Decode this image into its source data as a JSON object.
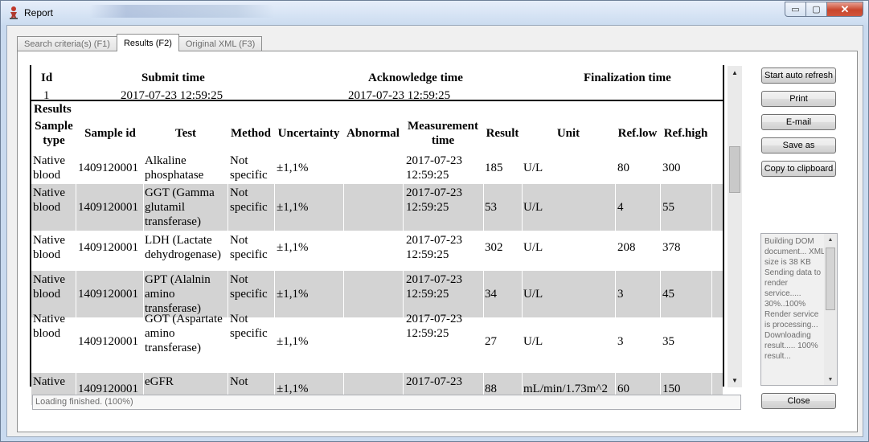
{
  "window": {
    "title": "Report",
    "controls": {
      "minimize": "▭",
      "maximize": "▢",
      "close": "✕"
    }
  },
  "tabs": [
    {
      "label": "Search criteria(s) (F1)",
      "active": false
    },
    {
      "label": "Results (F2)",
      "active": true
    },
    {
      "label": "Original XML (F3)",
      "active": false
    }
  ],
  "summary": {
    "headers": {
      "id": "Id",
      "submit": "Submit time",
      "ack": "Acknowledge time",
      "final": "Finalization time"
    },
    "values": {
      "id": "1",
      "submit": "2017-07-23 12:59:25",
      "ack": "2017-07-23 12:59:25",
      "final": ""
    }
  },
  "results": {
    "title": "Results",
    "columns": [
      "Sample type",
      "Sample id",
      "Test",
      "Method",
      "Uncertainty",
      "Abnormal",
      "Measurement time",
      "Result",
      "Unit",
      "Ref.low",
      "Ref.high"
    ],
    "rows": [
      {
        "sample_type": "Native blood",
        "sample_id": "1409120001",
        "test": "Alkaline phosphatase",
        "method": "Not specific",
        "uncertainty": "±1,1%",
        "abnormal": "",
        "time": "2017-07-23 12:59:25",
        "result": "185",
        "unit": "U/L",
        "ref_low": "80",
        "ref_high": "300"
      },
      {
        "sample_type": "Native blood",
        "sample_id": "1409120001",
        "test": "GGT (Gamma glutamil transferase)",
        "method": "Not specific",
        "uncertainty": "±1,1%",
        "abnormal": "",
        "time": "2017-07-23 12:59:25",
        "result": "53",
        "unit": "U/L",
        "ref_low": "4",
        "ref_high": "55"
      },
      {
        "sample_type": "Native blood",
        "sample_id": "1409120001",
        "test": "LDH (Lactate dehydrogenase)",
        "method": "Not specific",
        "uncertainty": "±1,1%",
        "abnormal": "",
        "time": "2017-07-23 12:59:25",
        "result": "302",
        "unit": "U/L",
        "ref_low": "208",
        "ref_high": "378"
      },
      {
        "sample_type": "Native blood",
        "sample_id": "1409120001",
        "test": "GPT (Alalnin amino transferase)",
        "method": "Not specific",
        "uncertainty": "±1,1%",
        "abnormal": "",
        "time": "2017-07-23 12:59:25",
        "result": "34",
        "unit": "U/L",
        "ref_low": "3",
        "ref_high": "45"
      },
      {
        "sample_type": "Native blood",
        "sample_id": "1409120001",
        "test": "GOT (Aspartate amino transferase)",
        "method": "Not specific",
        "uncertainty": "±1,1%",
        "abnormal": "",
        "time": "2017-07-23 12:59:25",
        "result": "27",
        "unit": "U/L",
        "ref_low": "3",
        "ref_high": "35"
      },
      {
        "sample_type": "Native",
        "sample_id": "1409120001",
        "test": "eGFR",
        "method": "Not",
        "uncertainty": "±1,1%",
        "abnormal": "",
        "time": "2017-07-23",
        "result": "88",
        "unit": "mL/min/1.73m^2",
        "ref_low": "60",
        "ref_high": "150"
      }
    ]
  },
  "status": {
    "loading": "Loading finished. (100%)"
  },
  "buttons": {
    "auto_refresh": "Start auto refresh",
    "print": "Print",
    "email": "E-mail",
    "save_as": "Save as",
    "copy": "Copy to clipboard",
    "close": "Close"
  },
  "log": {
    "text": "Building DOM document... XML size is 38 KB\nSending data to render service..... 30%..100%\nRender service is processing... Downloading result..... 100%\nresult..."
  },
  "colors": {
    "shaded_row": "#d3d3d3",
    "frame": "#c9daef"
  },
  "icons": {
    "app": "app-figure-icon",
    "scroll_up": "arrow-up-icon",
    "scroll_down": "arrow-down-icon"
  }
}
